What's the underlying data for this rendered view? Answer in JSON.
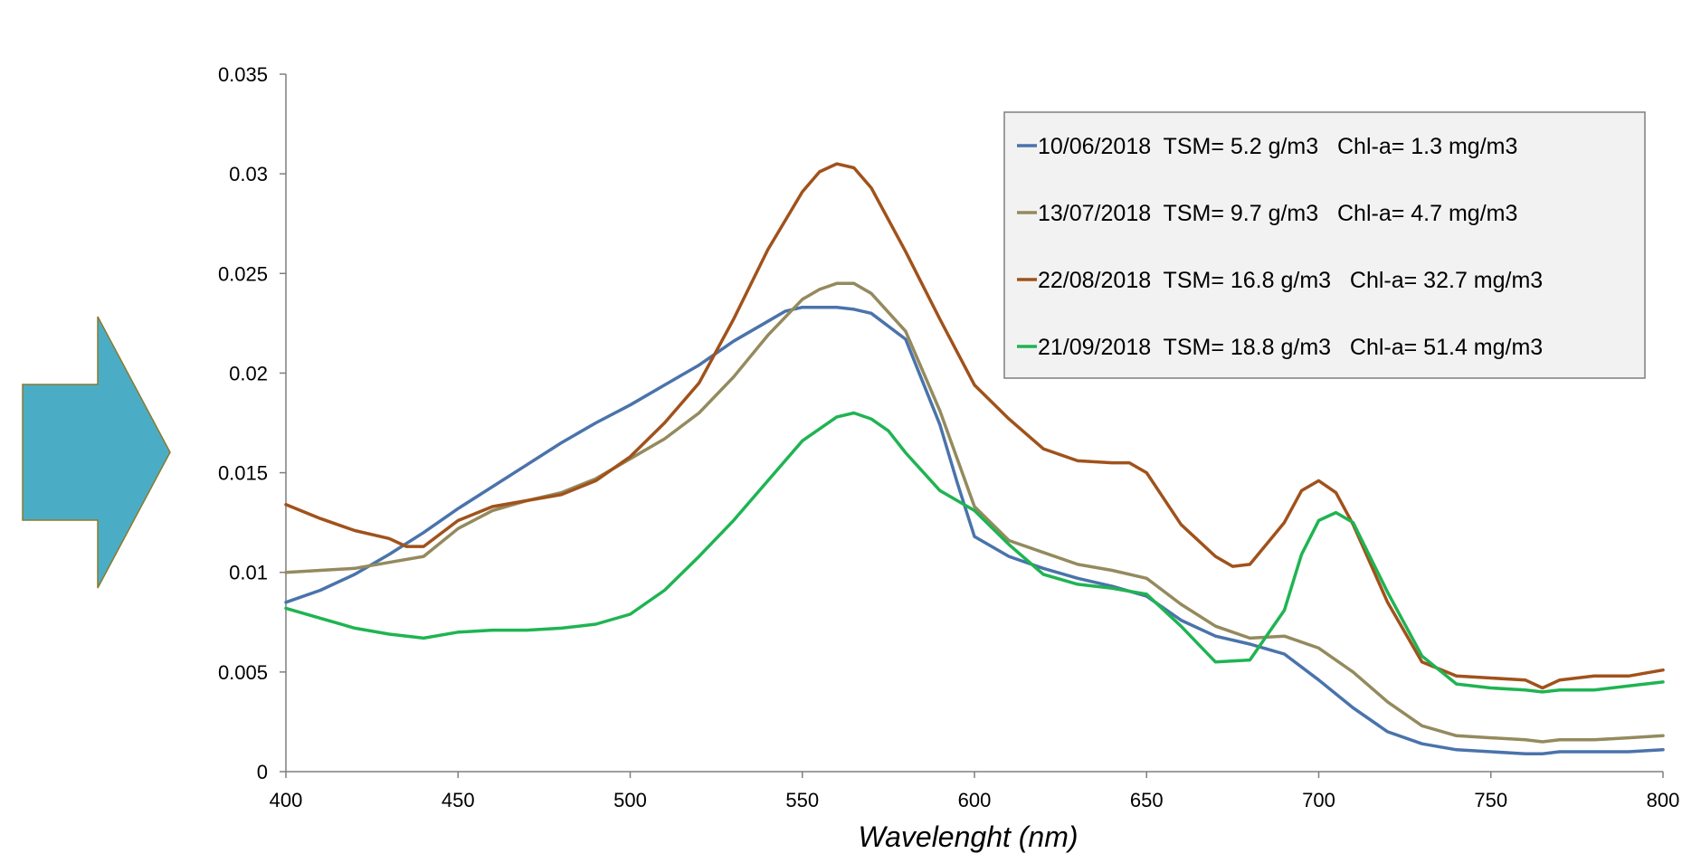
{
  "chart_data": {
    "type": "line",
    "title": "",
    "xlabel": "Wavelenght (nm)",
    "ylabel": "",
    "xlim": [
      400,
      800
    ],
    "ylim": [
      0,
      0.035
    ],
    "x_ticks": [
      400,
      450,
      500,
      550,
      600,
      650,
      700,
      750,
      800
    ],
    "x_tick_labels": [
      "400",
      "450",
      "500",
      "550",
      "600",
      "650",
      "700",
      "750",
      "800"
    ],
    "y_ticks": [
      0,
      0.005,
      0.01,
      0.015,
      0.02,
      0.025,
      0.03,
      0.035
    ],
    "y_tick_labels": [
      "0",
      "0.005",
      "0.01",
      "0.015",
      "0.02",
      "0.025",
      "0.03",
      "0.035"
    ],
    "grid": false,
    "legend_position": "top-right",
    "series": [
      {
        "name": "10/06/2018  TSM= 5.2 g/m3   Chl-a= 1.3 mg/m3",
        "color": "#4a73ab",
        "x": [
          400,
          410,
          420,
          430,
          440,
          450,
          460,
          470,
          480,
          490,
          500,
          510,
          520,
          530,
          540,
          545,
          550,
          560,
          565,
          570,
          580,
          590,
          595,
          600,
          610,
          620,
          630,
          640,
          650,
          660,
          670,
          680,
          690,
          700,
          710,
          720,
          730,
          740,
          750,
          760,
          765,
          770,
          780,
          790,
          800
        ],
        "y": [
          0.0085,
          0.0091,
          0.0099,
          0.0109,
          0.012,
          0.0132,
          0.0143,
          0.0154,
          0.0165,
          0.0175,
          0.0184,
          0.0194,
          0.0204,
          0.0216,
          0.0226,
          0.0231,
          0.0233,
          0.0233,
          0.0232,
          0.023,
          0.0217,
          0.0174,
          0.0145,
          0.0118,
          0.0108,
          0.0102,
          0.0097,
          0.0093,
          0.0088,
          0.0076,
          0.0068,
          0.0064,
          0.0059,
          0.0046,
          0.0032,
          0.002,
          0.0014,
          0.0011,
          0.001,
          0.0009,
          0.0009,
          0.001,
          0.001,
          0.001,
          0.0011
        ]
      },
      {
        "name": "13/07/2018  TSM= 9.7 g/m3   Chl-a= 4.7 mg/m3",
        "color": "#948a5e",
        "x": [
          400,
          410,
          420,
          430,
          440,
          450,
          460,
          470,
          480,
          490,
          500,
          510,
          520,
          530,
          540,
          550,
          555,
          560,
          565,
          570,
          580,
          590,
          600,
          610,
          620,
          630,
          640,
          650,
          660,
          670,
          680,
          690,
          700,
          710,
          720,
          730,
          740,
          750,
          760,
          765,
          770,
          780,
          790,
          800
        ],
        "y": [
          0.01,
          0.0101,
          0.0102,
          0.0105,
          0.0108,
          0.0122,
          0.0131,
          0.0136,
          0.014,
          0.0147,
          0.0157,
          0.0167,
          0.018,
          0.0198,
          0.0219,
          0.0237,
          0.0242,
          0.0245,
          0.0245,
          0.024,
          0.0221,
          0.0181,
          0.0133,
          0.0116,
          0.011,
          0.0104,
          0.0101,
          0.0097,
          0.0084,
          0.0073,
          0.0067,
          0.0068,
          0.0062,
          0.005,
          0.0035,
          0.0023,
          0.0018,
          0.0017,
          0.0016,
          0.0015,
          0.0016,
          0.0016,
          0.0017,
          0.0018
        ]
      },
      {
        "name": "22/08/2018  TSM= 16.8 g/m3   Chl-a= 32.7 mg/m3",
        "color": "#a0521b",
        "x": [
          400,
          410,
          420,
          430,
          435,
          440,
          450,
          460,
          470,
          480,
          490,
          500,
          510,
          520,
          530,
          540,
          550,
          555,
          560,
          565,
          570,
          580,
          590,
          600,
          610,
          620,
          630,
          640,
          645,
          650,
          660,
          670,
          675,
          680,
          690,
          695,
          700,
          705,
          710,
          720,
          730,
          740,
          750,
          760,
          765,
          770,
          780,
          790,
          800
        ],
        "y": [
          0.0134,
          0.0127,
          0.0121,
          0.0117,
          0.0113,
          0.0113,
          0.0126,
          0.0133,
          0.0136,
          0.0139,
          0.0146,
          0.0158,
          0.0175,
          0.0195,
          0.0227,
          0.0262,
          0.0291,
          0.0301,
          0.0305,
          0.0303,
          0.0293,
          0.0261,
          0.0227,
          0.0194,
          0.0177,
          0.0162,
          0.0156,
          0.0155,
          0.0155,
          0.015,
          0.0124,
          0.0108,
          0.0103,
          0.0104,
          0.0125,
          0.0141,
          0.0146,
          0.014,
          0.0124,
          0.0085,
          0.0055,
          0.0048,
          0.0047,
          0.0046,
          0.0042,
          0.0046,
          0.0048,
          0.0048,
          0.0051
        ]
      },
      {
        "name": "21/09/2018  TSM= 18.8 g/m3   Chl-a= 51.4 mg/m3",
        "color": "#1fb452",
        "x": [
          400,
          410,
          420,
          430,
          440,
          450,
          460,
          470,
          480,
          490,
          500,
          510,
          520,
          530,
          540,
          550,
          560,
          565,
          570,
          575,
          580,
          590,
          600,
          610,
          620,
          630,
          640,
          650,
          660,
          670,
          680,
          690,
          695,
          700,
          705,
          710,
          720,
          730,
          740,
          750,
          760,
          765,
          770,
          780,
          790,
          800
        ],
        "y": [
          0.0082,
          0.0077,
          0.0072,
          0.0069,
          0.0067,
          0.007,
          0.0071,
          0.0071,
          0.0072,
          0.0074,
          0.0079,
          0.0091,
          0.0108,
          0.0126,
          0.0146,
          0.0166,
          0.0178,
          0.018,
          0.0177,
          0.0171,
          0.016,
          0.0141,
          0.0131,
          0.0114,
          0.0099,
          0.0094,
          0.0092,
          0.0089,
          0.0073,
          0.0055,
          0.0056,
          0.0081,
          0.0109,
          0.0126,
          0.013,
          0.0125,
          0.009,
          0.0058,
          0.0044,
          0.0042,
          0.0041,
          0.004,
          0.0041,
          0.0041,
          0.0043,
          0.0045
        ]
      }
    ]
  },
  "decor": {
    "arrow_color": "#4badc5",
    "arrow_border": "#8a7a2e",
    "axis_color": "#7f7f7f",
    "legend_bg": "#f2f2f2",
    "legend_border": "#7f7f7f"
  }
}
